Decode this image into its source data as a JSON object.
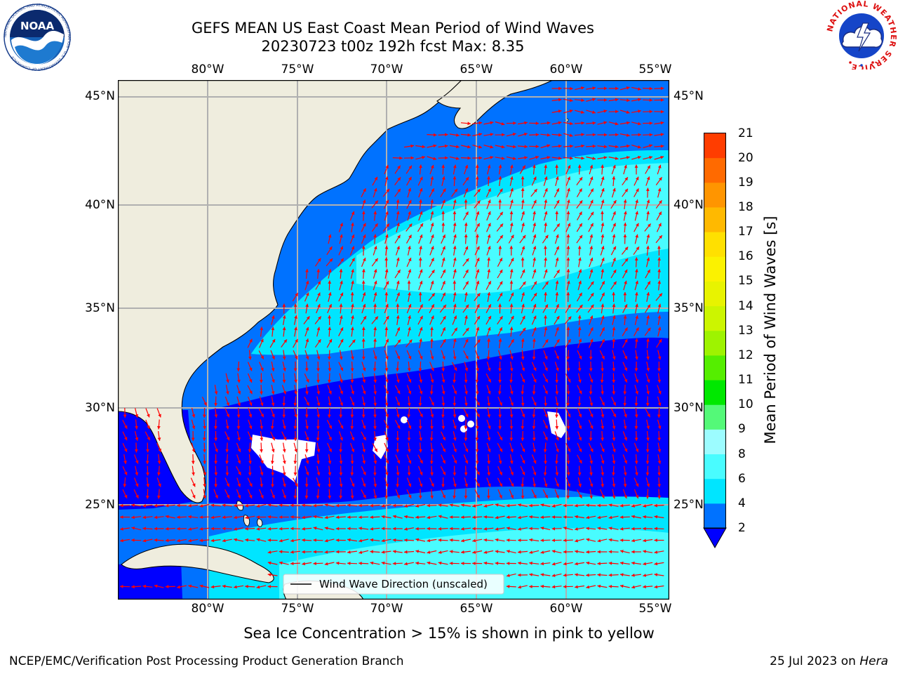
{
  "header": {
    "title_line1": "GEFS MEAN US East Coast Mean Period of Wind Waves",
    "title_line2": "20230723 t00z 192h fcst   Max: 8.35"
  },
  "map": {
    "lon_ticks": [
      "80°W",
      "75°W",
      "70°W",
      "65°W",
      "60°W",
      "55°W"
    ],
    "lat_ticks": [
      "45°N",
      "40°N",
      "35°N",
      "30°N",
      "25°N"
    ],
    "land_color": "#efedde",
    "gridline_color": "#b0b0b0",
    "arrow_color": "#ff0000",
    "legend_label": "Wind Wave Direction (unscaled)"
  },
  "colorbar": {
    "label": "Mean Period of Wind Waves [s]",
    "ticks": [
      "2",
      "4",
      "6",
      "8",
      "9",
      "10",
      "11",
      "12",
      "13",
      "14",
      "15",
      "16",
      "17",
      "18",
      "19",
      "20",
      "21"
    ],
    "colors": [
      "#0072ff",
      "#00e5ff",
      "#49fcff",
      "#9cfcff",
      "#54f978",
      "#00e800",
      "#55ee00",
      "#9ef300",
      "#ccf500",
      "#e8f300",
      "#fbf200",
      "#ffe000",
      "#ffb900",
      "#ff9500",
      "#ff6a00",
      "#ff3d00",
      "#ff0000"
    ],
    "under_color": "#0000ff"
  },
  "field_colors": {
    "deep_blue": "#0000ff",
    "mid_blue": "#0072ff",
    "cyan": "#00e5ff",
    "light_cyan": "#49fcff"
  },
  "footer": {
    "sea_ice_note": "Sea Ice Concentration > 15% is shown in pink to yellow",
    "credit": "NCEP/EMC/Verification Post Processing Product Generation Branch",
    "date_text": "25 Jul 2023 on ",
    "date_host": "Hera"
  },
  "logos": {
    "left_text": "NOAA",
    "left_ring": "NATIONAL OCEANIC AND ATMOSPHERIC ADMINISTRATION · U.S. DEPARTMENT OF COMMERCE",
    "right_ring": "NATIONAL WEATHER SERVICE"
  }
}
